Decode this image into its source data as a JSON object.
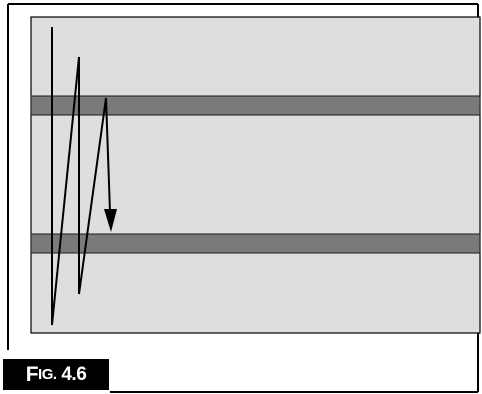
{
  "figure": {
    "label_lead": "F",
    "label_caps": "IG.",
    "label_number": "4.6"
  },
  "colors": {
    "panel_fill": "#dedede",
    "band_fill": "#7a7a7a",
    "frame": "#000000",
    "label_bg": "#000000",
    "label_text": "#ffffff"
  }
}
